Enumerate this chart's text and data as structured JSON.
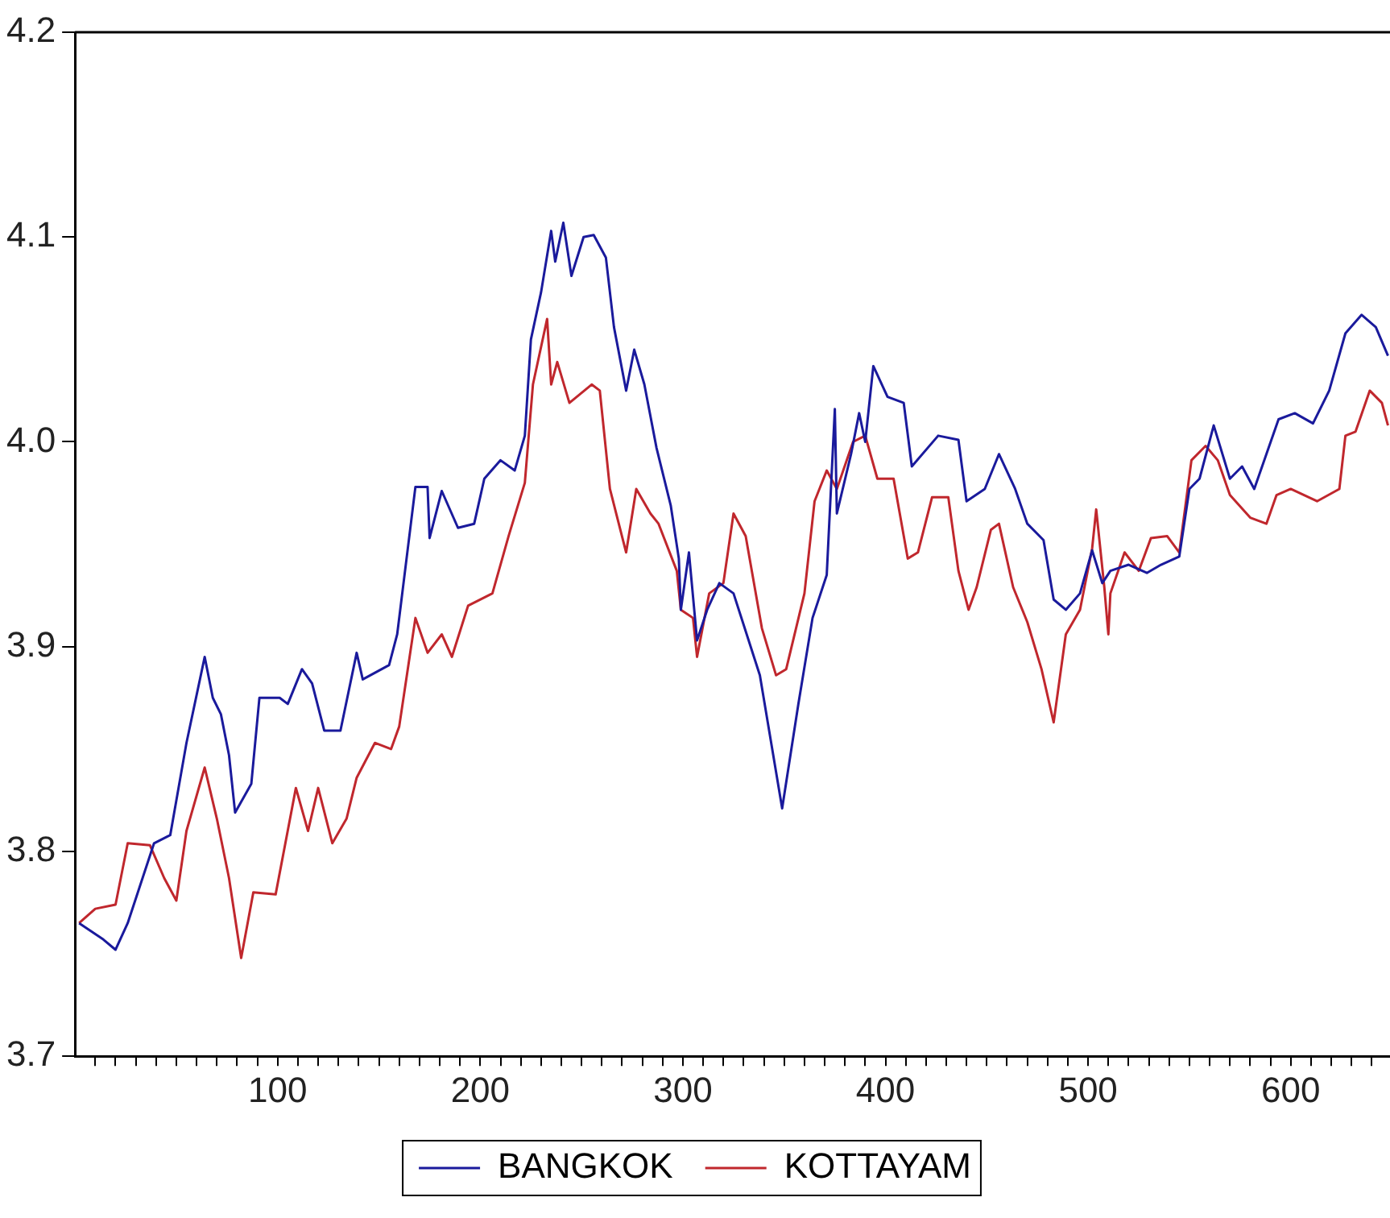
{
  "chart_data": {
    "type": "line",
    "legend": "bottom",
    "grid": false,
    "marker": "none",
    "line_style": "solid",
    "xlim": [
      0,
      649
    ],
    "ylim": [
      3.7,
      4.2
    ],
    "xticks": [
      {
        "value": 10,
        "label": null
      },
      {
        "value": 20,
        "label": null
      },
      {
        "value": 30,
        "label": null
      },
      {
        "value": 40,
        "label": null
      },
      {
        "value": 50,
        "label": null
      },
      {
        "value": 60,
        "label": null
      },
      {
        "value": 70,
        "label": null
      },
      {
        "value": 80,
        "label": null
      },
      {
        "value": 90,
        "label": null
      },
      100,
      {
        "value": 110,
        "label": null
      },
      {
        "value": 120,
        "label": null
      },
      {
        "value": 130,
        "label": null
      },
      {
        "value": 140,
        "label": null
      },
      {
        "value": 150,
        "label": null
      },
      {
        "value": 160,
        "label": null
      },
      {
        "value": 170,
        "label": null
      },
      {
        "value": 180,
        "label": null
      },
      {
        "value": 190,
        "label": null
      },
      200,
      {
        "value": 210,
        "label": null
      },
      {
        "value": 220,
        "label": null
      },
      {
        "value": 230,
        "label": null
      },
      {
        "value": 240,
        "label": null
      },
      {
        "value": 250,
        "label": null
      },
      {
        "value": 260,
        "label": null
      },
      {
        "value": 270,
        "label": null
      },
      {
        "value": 280,
        "label": null
      },
      {
        "value": 290,
        "label": null
      },
      300,
      {
        "value": 310,
        "label": null
      },
      {
        "value": 320,
        "label": null
      },
      {
        "value": 330,
        "label": null
      },
      {
        "value": 340,
        "label": null
      },
      {
        "value": 350,
        "label": null
      },
      {
        "value": 360,
        "label": null
      },
      {
        "value": 370,
        "label": null
      },
      {
        "value": 380,
        "label": null
      },
      {
        "value": 390,
        "label": null
      },
      400,
      {
        "value": 410,
        "label": null
      },
      {
        "value": 420,
        "label": null
      },
      {
        "value": 430,
        "label": null
      },
      {
        "value": 440,
        "label": null
      },
      {
        "value": 450,
        "label": null
      },
      {
        "value": 460,
        "label": null
      },
      {
        "value": 470,
        "label": null
      },
      {
        "value": 480,
        "label": null
      },
      {
        "value": 490,
        "label": null
      },
      500,
      {
        "value": 510,
        "label": null
      },
      {
        "value": 520,
        "label": null
      },
      {
        "value": 530,
        "label": null
      },
      {
        "value": 540,
        "label": null
      },
      {
        "value": 550,
        "label": null
      },
      {
        "value": 560,
        "label": null
      },
      {
        "value": 570,
        "label": null
      },
      {
        "value": 580,
        "label": null
      },
      {
        "value": 590,
        "label": null
      },
      600,
      {
        "value": 610,
        "label": null
      },
      {
        "value": 620,
        "label": null
      },
      {
        "value": 630,
        "label": null
      },
      {
        "value": 640,
        "label": null
      }
    ],
    "yticks": [
      {
        "value": 3.7,
        "label": "3.7"
      },
      {
        "value": 3.8,
        "label": "3.8"
      },
      {
        "value": 3.9,
        "label": "3.9"
      },
      {
        "value": 4.0,
        "label": "4.0"
      },
      {
        "value": 4.1,
        "label": "4.1"
      },
      {
        "value": 4.2,
        "label": "4.2"
      }
    ],
    "series": [
      {
        "name": "BANGKOK",
        "color": "#1a1a9c",
        "x": [
          2,
          14,
          20,
          26,
          39,
          47,
          55,
          64,
          68,
          72,
          76,
          79,
          87,
          91,
          101,
          105,
          112,
          117,
          123,
          131,
          139,
          142,
          155,
          159,
          168,
          174,
          175,
          181,
          189,
          197,
          202,
          210,
          217,
          222,
          225,
          230,
          235,
          237,
          241,
          245,
          251,
          256,
          262,
          266,
          272,
          276,
          281,
          287,
          294,
          298,
          299,
          303,
          307,
          312,
          318,
          325,
          338,
          349,
          357,
          364,
          371,
          375,
          376,
          383,
          387,
          390,
          394,
          401,
          409,
          413,
          426,
          436,
          440,
          449,
          456,
          464,
          470,
          478,
          483,
          489,
          496,
          502,
          507,
          511,
          520,
          529,
          536,
          545,
          550,
          555,
          562,
          570,
          576,
          582,
          588,
          594,
          602,
          611,
          619,
          627,
          635,
          642,
          648
        ],
        "values": [
          3.765,
          3.757,
          3.752,
          3.765,
          3.804,
          3.808,
          3.853,
          3.895,
          3.875,
          3.867,
          3.847,
          3.819,
          3.833,
          3.875,
          3.875,
          3.872,
          3.889,
          3.882,
          3.859,
          3.859,
          3.897,
          3.884,
          3.891,
          3.906,
          3.978,
          3.978,
          3.953,
          3.976,
          3.958,
          3.96,
          3.982,
          3.991,
          3.986,
          4.003,
          4.05,
          4.073,
          4.103,
          4.088,
          4.107,
          4.081,
          4.1,
          4.101,
          4.09,
          4.056,
          4.025,
          4.045,
          4.028,
          3.997,
          3.969,
          3.943,
          3.918,
          3.946,
          3.903,
          3.918,
          3.931,
          3.926,
          3.886,
          3.821,
          3.872,
          3.914,
          3.935,
          4.016,
          3.965,
          3.994,
          4.014,
          4.0,
          4.037,
          4.022,
          4.019,
          3.988,
          4.003,
          4.001,
          3.971,
          3.977,
          3.994,
          3.977,
          3.96,
          3.952,
          3.923,
          3.918,
          3.926,
          3.947,
          3.931,
          3.937,
          3.94,
          3.936,
          3.94,
          3.944,
          3.977,
          3.982,
          4.008,
          3.982,
          3.988,
          3.977,
          3.994,
          4.011,
          4.014,
          4.009,
          4.025,
          4.053,
          4.062,
          4.056,
          4.042
        ]
      },
      {
        "name": "KOTTAYAM",
        "color": "#c0272d",
        "x": [
          2,
          10,
          20,
          26,
          37,
          44,
          50,
          55,
          64,
          70,
          76,
          82,
          88,
          99,
          109,
          115,
          120,
          127,
          134,
          139,
          148,
          156,
          160,
          168,
          174,
          181,
          186,
          194,
          206,
          214,
          222,
          226,
          233,
          235,
          238,
          244,
          255,
          259,
          264,
          272,
          277,
          284,
          288,
          297,
          299,
          305,
          307,
          313,
          320,
          325,
          331,
          339,
          346,
          351,
          360,
          365,
          371,
          376,
          384,
          390,
          396,
          404,
          411,
          416,
          423,
          431,
          436,
          441,
          445,
          452,
          456,
          463,
          470,
          477,
          483,
          489,
          496,
          502,
          504,
          508,
          510,
          511,
          518,
          525,
          531,
          539,
          545,
          551,
          558,
          564,
          570,
          580,
          588,
          593,
          600,
          613,
          624,
          627,
          632,
          639,
          645,
          648
        ],
        "values": [
          3.765,
          3.772,
          3.774,
          3.804,
          3.803,
          3.787,
          3.776,
          3.81,
          3.841,
          3.816,
          3.787,
          3.748,
          3.78,
          3.779,
          3.831,
          3.81,
          3.831,
          3.804,
          3.816,
          3.836,
          3.853,
          3.85,
          3.861,
          3.914,
          3.897,
          3.906,
          3.895,
          3.92,
          3.926,
          3.954,
          3.98,
          4.028,
          4.06,
          4.028,
          4.039,
          4.019,
          4.028,
          4.025,
          3.977,
          3.946,
          3.977,
          3.965,
          3.96,
          3.937,
          3.918,
          3.914,
          3.895,
          3.926,
          3.931,
          3.965,
          3.954,
          3.909,
          3.886,
          3.889,
          3.926,
          3.971,
          3.986,
          3.977,
          4.0,
          4.003,
          3.982,
          3.982,
          3.943,
          3.946,
          3.973,
          3.973,
          3.937,
          3.918,
          3.929,
          3.957,
          3.96,
          3.929,
          3.912,
          3.889,
          3.863,
          3.906,
          3.918,
          3.948,
          3.967,
          3.929,
          3.906,
          3.926,
          3.946,
          3.937,
          3.953,
          3.954,
          3.946,
          3.991,
          3.998,
          3.991,
          3.974,
          3.963,
          3.96,
          3.974,
          3.977,
          3.971,
          3.977,
          4.003,
          4.005,
          4.025,
          4.019,
          4.008
        ]
      }
    ]
  }
}
